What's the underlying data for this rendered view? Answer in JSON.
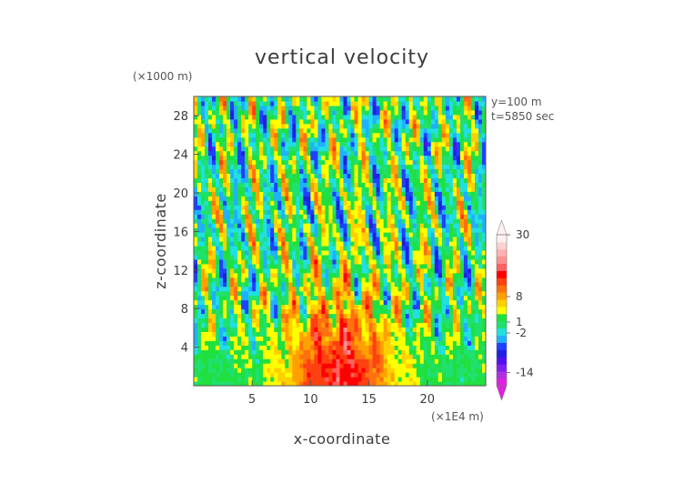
{
  "chart_data": {
    "type": "heatmap",
    "title": "vertical velocity",
    "xlabel": "x-coordinate",
    "ylabel": "z-coordinate",
    "x_unit_label": "(×1E4 m)",
    "y_unit_label": "(×1000 m)",
    "annotation_lines": [
      "y=100 m",
      "t=5850 sec"
    ],
    "xlim": [
      0,
      25
    ],
    "ylim": [
      0,
      30
    ],
    "x_ticks": [
      5,
      10,
      15,
      20
    ],
    "y_ticks": [
      4,
      8,
      12,
      16,
      20,
      24,
      28
    ],
    "colorbar": {
      "labels": [
        {
          "text": "30",
          "value": 30
        },
        {
          "text": "8",
          "value": 8
        },
        {
          "text": "1",
          "value": 1
        },
        {
          "text": "-2",
          "value": -2
        },
        {
          "text": "-14",
          "value": -14
        }
      ],
      "colors": [
        "#e020e0",
        "#b030e0",
        "#8020f0",
        "#5010f0",
        "#2020e0",
        "#2040ff",
        "#20b0ff",
        "#20e0e0",
        "#20e070",
        "#20e040",
        "#ffff00",
        "#ffd000",
        "#ffa000",
        "#ff7010",
        "#ff4010",
        "#ff0000",
        "#ff6060",
        "#ff9090",
        "#ffb0b0",
        "#ffd0d0",
        "#fff0f0"
      ]
    },
    "grid": false,
    "colormap_notes": "Green/yellow near-zero background at low levels, vertical plumes of alternating red/orange (updrafts) and blue (downdrafts) above ~z=4 km, dense orange/red core between x≈7 and x≈18 below z≈14 km."
  }
}
